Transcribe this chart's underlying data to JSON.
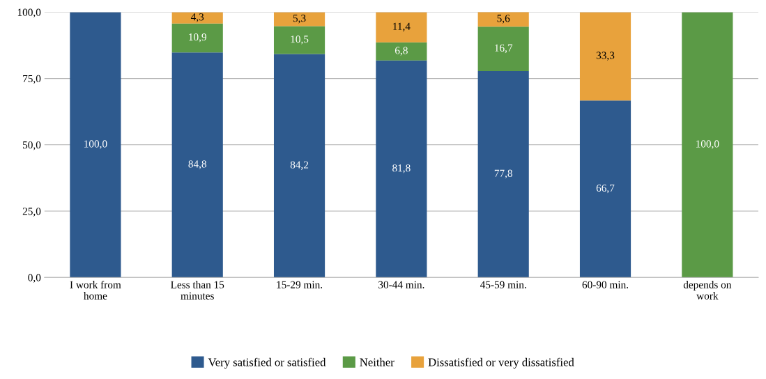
{
  "chart_data": {
    "type": "bar",
    "stacked": true,
    "categories": [
      "I work from home",
      "Less than 15 minutes",
      "15-29 min.",
      "30-44 min.",
      "45-59 min.",
      "60-90 min.",
      "depends on work"
    ],
    "series": [
      {
        "name": "Very satisfied or satisfied",
        "color": "#2e5a8e",
        "values": [
          100.0,
          84.8,
          84.2,
          81.8,
          77.8,
          66.7,
          null
        ],
        "value_labels": [
          "100,0",
          "84,8",
          "84,2",
          "81,8",
          "77,8",
          "66,7",
          null
        ]
      },
      {
        "name": "Neither",
        "color": "#5b9a46",
        "values": [
          null,
          10.9,
          10.5,
          6.8,
          16.7,
          null,
          100.0
        ],
        "value_labels": [
          null,
          "10,9",
          "10,5",
          "6,8",
          "16,7",
          null,
          "100,0"
        ]
      },
      {
        "name": "Dissatisfied or very dissatisfied",
        "color": "#e8a23c",
        "values": [
          null,
          4.3,
          5.3,
          11.4,
          5.6,
          33.3,
          null
        ],
        "value_labels": [
          null,
          "4,3",
          "5,3",
          "11,4",
          "5,6",
          "33,3",
          null
        ]
      }
    ],
    "ylim": [
      0,
      100
    ],
    "yticks": [
      {
        "value": 0,
        "label": "0,0"
      },
      {
        "value": 25,
        "label": "25,0"
      },
      {
        "value": 50,
        "label": "50,0"
      },
      {
        "value": 75,
        "label": "75,0"
      },
      {
        "value": 100,
        "label": "100,0"
      }
    ],
    "grid": "y",
    "legend": "bottom"
  }
}
